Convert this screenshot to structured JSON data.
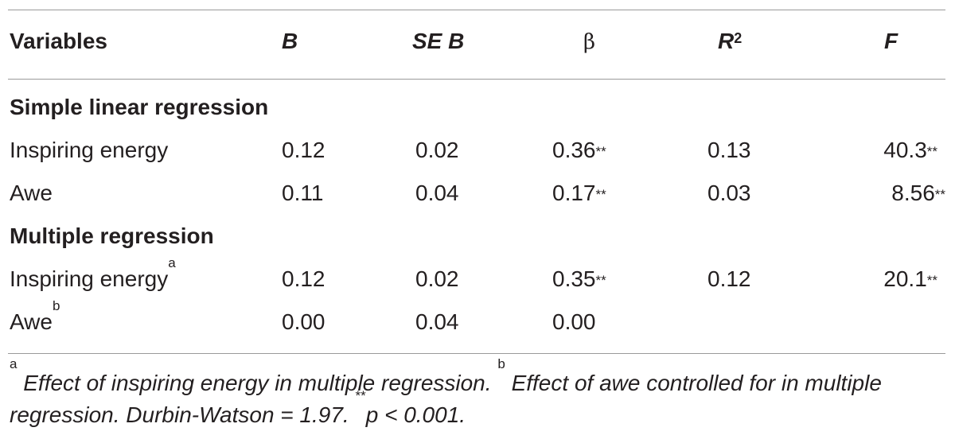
{
  "table": {
    "headers": {
      "variables": "Variables",
      "b": "B",
      "se_b": "SE B",
      "beta": "β",
      "r2_base": "R",
      "r2_sup": "2",
      "f": "F"
    },
    "sections": [
      {
        "title": "Simple linear regression",
        "rows": [
          {
            "variable": "Inspiring energy",
            "variable_sup": "",
            "b": "0.12",
            "se_b": "0.02",
            "beta": "0.36",
            "beta_stars": "**",
            "r2": "0.13",
            "f": "40.3",
            "f_stars": "**"
          },
          {
            "variable": "Awe",
            "variable_sup": "",
            "b": "0.11",
            "se_b": "0.04",
            "beta": "0.17",
            "beta_stars": "**",
            "r2": "0.03",
            "f": "8.56",
            "f_stars": "**"
          }
        ]
      },
      {
        "title": "Multiple regression",
        "rows": [
          {
            "variable": "Inspiring energy",
            "variable_sup": "a",
            "b": "0.12",
            "se_b": "0.02",
            "beta": "0.35",
            "beta_stars": "**",
            "r2": "0.12",
            "f": "20.1",
            "f_stars": "**"
          },
          {
            "variable": "Awe",
            "variable_sup": "b",
            "b": "0.00",
            "se_b": "0.04",
            "beta": "0.00",
            "beta_stars": "",
            "r2": "",
            "f": "",
            "f_stars": ""
          }
        ]
      }
    ]
  },
  "footnote": {
    "mark_a": "a",
    "text_a": " Effect of inspiring energy in multiple regression. ",
    "mark_b": "b",
    "text_b": " Effect of awe controlled for in multiple regression. Durbin-Watson = 1.97. ",
    "stars": "**",
    "text_p": "p < 0.001."
  }
}
